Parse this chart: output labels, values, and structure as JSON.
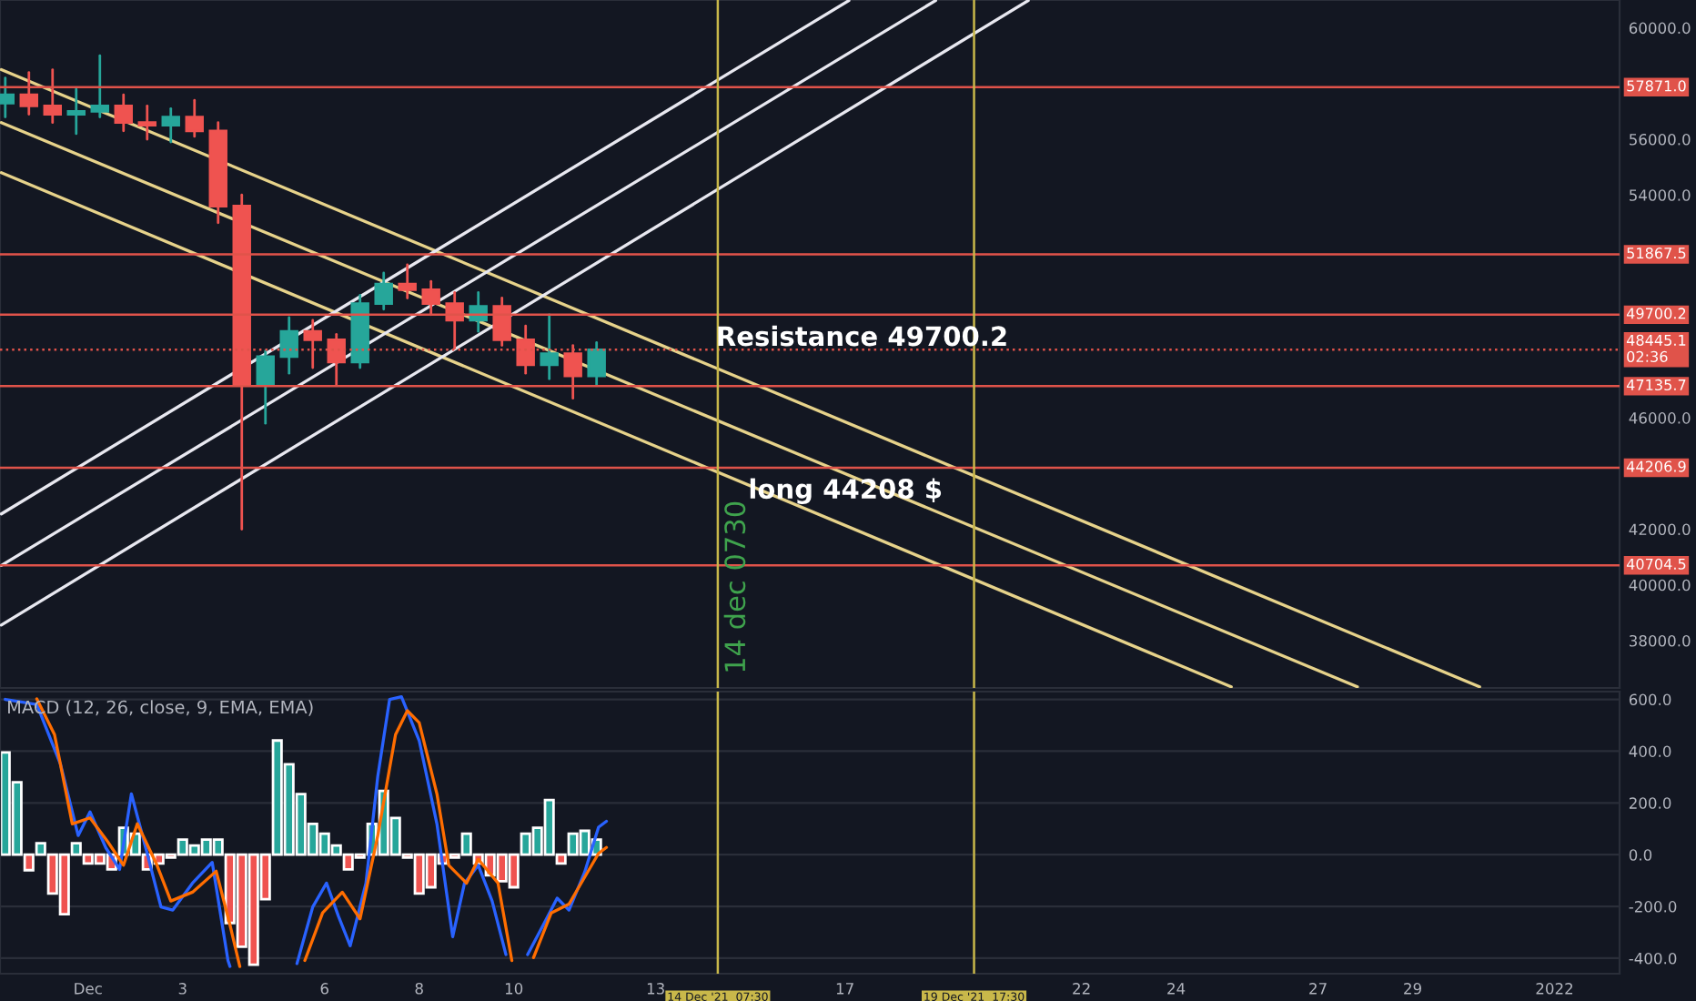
{
  "chart_data": [
    {
      "type": "candlestick",
      "x": [
        "2021-11-29T06:00",
        "2021-11-29T18:00",
        "2021-11-30T06:00",
        "2021-11-30T18:00",
        "2021-12-01T06:00",
        "2021-12-01T18:00",
        "2021-12-02T06:00",
        "2021-12-02T18:00",
        "2021-12-03T06:00",
        "2021-12-03T18:00",
        "2021-12-04T06:00",
        "2021-12-04T18:00",
        "2021-12-05T06:00",
        "2021-12-05T18:00",
        "2021-12-06T06:00",
        "2021-12-06T18:00",
        "2021-12-07T06:00",
        "2021-12-07T18:00",
        "2021-12-08T06:00",
        "2021-12-08T18:00",
        "2021-12-09T06:00",
        "2021-12-09T18:00",
        "2021-12-10T06:00",
        "2021-12-10T18:00",
        "2021-12-11T06:00",
        "2021-12-11T18:00"
      ],
      "ohlc": [
        [
          57300,
          58200,
          56800,
          57600
        ],
        [
          57600,
          58400,
          56900,
          57200
        ],
        [
          57200,
          58500,
          56600,
          56900
        ],
        [
          56900,
          57800,
          56200,
          57000
        ],
        [
          57000,
          59000,
          56800,
          57200
        ],
        [
          57200,
          57600,
          56300,
          56600
        ],
        [
          56600,
          57200,
          56000,
          56500
        ],
        [
          56500,
          57100,
          55900,
          56800
        ],
        [
          56800,
          57400,
          56100,
          56300
        ],
        [
          56300,
          56600,
          53000,
          53600
        ],
        [
          53600,
          54000,
          42000,
          47200
        ],
        [
          47200,
          48400,
          45800,
          48200
        ],
        [
          48200,
          49600,
          47600,
          49100
        ],
        [
          49100,
          49500,
          47800,
          48800
        ],
        [
          48800,
          49000,
          47200,
          48000
        ],
        [
          48000,
          50400,
          47800,
          50100
        ],
        [
          50100,
          51200,
          49900,
          50800
        ],
        [
          50800,
          51500,
          50300,
          50600
        ],
        [
          50600,
          50900,
          49700,
          50100
        ],
        [
          50100,
          50500,
          48500,
          49500
        ],
        [
          49500,
          50500,
          49100,
          50000
        ],
        [
          50000,
          50300,
          48600,
          48800
        ],
        [
          48800,
          49300,
          47600,
          47900
        ],
        [
          47900,
          49700,
          47400,
          48300
        ],
        [
          48300,
          48600,
          46700,
          47500
        ],
        [
          47500,
          48700,
          47200,
          48445.1
        ]
      ],
      "series": [
        {
          "type": "line",
          "color": "#e6d28a",
          "x": [
            "2021-11-29T04:00",
            "2021-12-30T10:00"
          ],
          "values": [
            58500,
            36340
          ]
        },
        {
          "type": "line",
          "color": "#e6d28a",
          "x": [
            "2021-11-29T04:00",
            "2021-12-27T20:00"
          ],
          "values": [
            56600,
            36340
          ]
        },
        {
          "type": "line",
          "color": "#e6d28a",
          "x": [
            "2021-11-29T04:00",
            "2021-12-25T04:00"
          ],
          "values": [
            54800,
            36340
          ]
        },
        {
          "type": "line",
          "color": "#e8e8f0",
          "x": [
            "2021-11-29T04:00",
            "2021-12-17T02:00"
          ],
          "values": [
            42550,
            60980
          ]
        },
        {
          "type": "line",
          "color": "#e8e8f0",
          "x": [
            "2021-11-29T04:00",
            "2021-12-18T22:00"
          ],
          "values": [
            40700,
            60980
          ]
        },
        {
          "type": "line",
          "color": "#e8e8f0",
          "x": [
            "2021-11-29T04:00",
            "2021-12-20T21:00"
          ],
          "values": [
            38560,
            60980
          ]
        }
      ],
      "xlim": [
        "2021-11-29T03:20",
        "2022-01-02T09:00"
      ],
      "ylim": [
        36300,
        61000
      ],
      "yticks": [
        {
          "value": 38000,
          "label": "38000.0"
        },
        {
          "value": 40000,
          "label": "40000.0"
        },
        {
          "value": 42000,
          "label": "42000.0"
        },
        {
          "value": 46000,
          "label": "46000.0"
        },
        {
          "value": 54000,
          "label": "54000.0"
        },
        {
          "value": 56000,
          "label": "56000.0"
        },
        {
          "value": 60000,
          "label": "60000.0"
        }
      ],
      "tick_labels": "y",
      "ref_lines": [
        {
          "axis": "y",
          "value": 57871.0,
          "label": "57871.0",
          "color": "#e0534a"
        },
        {
          "axis": "y",
          "value": 51867.5,
          "label": "51867.5",
          "color": "#e0534a"
        },
        {
          "axis": "y",
          "value": 49700.2,
          "label": "49700.2",
          "color": "#e0534a"
        },
        {
          "axis": "y",
          "value": 48445.1,
          "label": "48445.1\n02:36",
          "color": "#e0534a",
          "line_style": "dotted"
        },
        {
          "axis": "y",
          "value": 47135.7,
          "label": "47135.7",
          "color": "#e0534a"
        },
        {
          "axis": "y",
          "value": 44206.9,
          "label": "44206.9",
          "color": "#e0534a"
        },
        {
          "axis": "y",
          "value": 40704.5,
          "label": "40704.5",
          "color": "#e0534a"
        },
        {
          "axis": "x",
          "value": "2021-12-14T07:30",
          "label": null,
          "color": "#c9b84a"
        },
        {
          "axis": "x",
          "value": "2021-12-19T17:30",
          "label": null,
          "color": "#c9b84a"
        }
      ],
      "annotations": [
        "Resistance 49700.2",
        "long 44208 $",
        "14 dec 0730"
      ]
    },
    {
      "type": "bar",
      "title": "MACD (12, 26, close, 9, EMA, EMA)",
      "series": [
        {
          "type": "bar",
          "x": [
            "2021-11-29T06:00",
            "2021-11-29T12:00",
            "2021-11-29T18:00",
            "2021-11-30T00:00",
            "2021-11-30T06:00",
            "2021-11-30T12:00",
            "2021-11-30T18:00",
            "2021-12-01T00:00",
            "2021-12-01T06:00",
            "2021-12-01T12:00",
            "2021-12-01T18:00",
            "2021-12-02T00:00",
            "2021-12-02T06:00",
            "2021-12-02T12:00",
            "2021-12-02T18:00",
            "2021-12-03T00:00",
            "2021-12-03T06:00",
            "2021-12-03T12:00",
            "2021-12-03T18:00",
            "2021-12-04T00:00",
            "2021-12-04T06:00",
            "2021-12-04T12:00",
            "2021-12-04T18:00",
            "2021-12-05T00:00",
            "2021-12-05T06:00",
            "2021-12-05T12:00",
            "2021-12-05T18:00",
            "2021-12-06T00:00",
            "2021-12-06T06:00",
            "2021-12-06T12:00",
            "2021-12-06T18:00",
            "2021-12-07T00:00",
            "2021-12-07T06:00",
            "2021-12-07T12:00",
            "2021-12-07T18:00",
            "2021-12-08T00:00",
            "2021-12-08T06:00",
            "2021-12-08T12:00",
            "2021-12-08T18:00",
            "2021-12-09T00:00",
            "2021-12-09T06:00",
            "2021-12-09T12:00",
            "2021-12-09T18:00",
            "2021-12-10T00:00",
            "2021-12-10T06:00",
            "2021-12-10T12:00",
            "2021-12-10T18:00",
            "2021-12-11T00:00",
            "2021-12-11T06:00",
            "2021-12-11T12:00",
            "2021-12-11T18:00"
          ],
          "values": [
            395,
            280,
            -60,
            44,
            -150,
            -230,
            44,
            -34,
            -34,
            -57,
            104,
            81,
            -57,
            -34,
            -11,
            58,
            35,
            58,
            58,
            -264,
            -356,
            -425,
            -172,
            441,
            349,
            234,
            119,
            81,
            35,
            -57,
            -11,
            119,
            246,
            142,
            -11,
            -150,
            -126,
            -34,
            -11,
            81,
            -34,
            -80,
            -103,
            -126,
            81,
            104,
            211,
            -34,
            81,
            92,
            58
          ],
          "colors": [
            "#26a69a",
            "#26a69a",
            "#ef5350",
            "#26a69a",
            "#ef5350",
            "#ef5350",
            "#26a69a",
            "#ef5350",
            "#ef5350",
            "#ef5350",
            "#26a69a",
            "#26a69a",
            "#ef5350",
            "#ef5350",
            "#ef5350",
            "#26a69a",
            "#26a69a",
            "#26a69a",
            "#26a69a",
            "#ef5350",
            "#ef5350",
            "#ef5350",
            "#ef5350",
            "#26a69a",
            "#26a69a",
            "#26a69a",
            "#26a69a",
            "#26a69a",
            "#26a69a",
            "#ef5350",
            "#ef5350",
            "#26a69a",
            "#26a69a",
            "#26a69a",
            "#ef5350",
            "#ef5350",
            "#ef5350",
            "#ef5350",
            "#ef5350",
            "#26a69a",
            "#ef5350",
            "#ef5350",
            "#ef5350",
            "#ef5350",
            "#26a69a",
            "#26a69a",
            "#26a69a",
            "#ef5350",
            "#26a69a",
            "#26a69a",
            "#26a69a"
          ]
        },
        {
          "type": "line",
          "color": "#2962ff",
          "x": [
            "2021-11-29T06:00",
            "2021-11-29T22:00",
            "2021-11-30T10:00",
            "2021-11-30T19:00",
            "2021-12-01T01:00",
            "2021-12-01T09:00",
            "2021-12-01T16:00",
            "2021-12-01T22:00",
            "2021-12-02T06:00",
            "2021-12-02T13:00",
            "2021-12-02T19:00",
            "2021-12-03T05:00",
            "2021-12-03T15:00",
            "2021-12-03T23:00",
            "2021-12-04T00:00",
            "2021-12-04T12:00",
            "2021-12-05T10:00",
            "2021-12-05T18:00",
            "2021-12-06T01:00",
            "2021-12-06T07:00",
            "2021-12-06T13:00",
            "2021-12-06T21:00",
            "2021-12-07T03:00",
            "2021-12-07T09:00",
            "2021-12-07T15:00",
            "2021-12-08T00:00",
            "2021-12-08T09:00",
            "2021-12-08T17:00",
            "2021-12-08T23:00",
            "2021-12-09T06:00",
            "2021-12-09T13:00",
            "2021-12-09T20:00",
            "2021-12-10T03:00",
            "2021-12-10T07:00",
            "2021-12-10T15:00",
            "2021-12-10T22:00",
            "2021-12-11T04:00",
            "2021-12-11T12:00",
            "2021-12-11T19:00",
            "2021-12-11T23:00"
          ],
          "values": [
            600,
            580,
            350,
            74,
            165,
            27,
            -57,
            235,
            5,
            -202,
            -214,
            -110,
            -30,
            -409,
            -432,
            null,
            -421,
            -202,
            -110,
            -237,
            -352,
            -110,
            303,
            600,
            610,
            441,
            119,
            -317,
            -110,
            -41,
            -179,
            -386,
            null,
            -386,
            -271,
            -168,
            -214,
            -67,
            106,
            129
          ]
        },
        {
          "type": "line",
          "color": "#ff6d00",
          "x": [
            "2021-11-29T22:00",
            "2021-11-30T07:00",
            "2021-11-30T16:00",
            "2021-12-01T01:00",
            "2021-12-01T10:00",
            "2021-12-01T18:00",
            "2021-12-02T01:00",
            "2021-12-02T11:00",
            "2021-12-02T18:00",
            "2021-12-03T05:00",
            "2021-12-03T17:00",
            "2021-12-04T00:00",
            "2021-12-04T05:00",
            "2021-12-04T18:00",
            "2021-12-05T14:00",
            "2021-12-05T23:00",
            "2021-12-06T09:00",
            "2021-12-06T18:00",
            "2021-12-07T03:00",
            "2021-12-07T12:00",
            "2021-12-07T18:00",
            "2021-12-08T00:00",
            "2021-12-08T09:00",
            "2021-12-08T15:00",
            "2021-12-09T00:00",
            "2021-12-09T06:00",
            "2021-12-09T16:00",
            "2021-12-09T23:00",
            "2021-12-10T05:00",
            "2021-12-10T10:00",
            "2021-12-10T19:00",
            "2021-12-11T04:00",
            "2021-12-11T19:00",
            "2021-12-11T23:00"
          ],
          "values": [
            602,
            464,
            119,
            142,
            50,
            -41,
            119,
            -41,
            -179,
            -145,
            -64,
            -271,
            -432,
            null,
            -409,
            -225,
            -145,
            -248,
            74,
            464,
            556,
            510,
            235,
            -41,
            -110,
            -18,
            -110,
            -409,
            null,
            -398,
            -225,
            -191,
            5,
            28
          ]
        }
      ],
      "xlim": [
        "2021-11-29T03:20",
        "2022-01-02T09:00"
      ],
      "xticks": [
        {
          "value": "2021-12-01",
          "label": "Dec"
        },
        {
          "value": "2021-12-03",
          "label": "3"
        },
        {
          "value": "2021-12-06",
          "label": "6"
        },
        {
          "value": "2021-12-08",
          "label": "8"
        },
        {
          "value": "2021-12-10",
          "label": "10"
        },
        {
          "value": "2021-12-13",
          "label": "13"
        },
        {
          "value": "2021-12-17",
          "label": "17"
        },
        {
          "value": "2021-12-22",
          "label": "22"
        },
        {
          "value": "2021-12-24",
          "label": "24"
        },
        {
          "value": "2021-12-27",
          "label": "27"
        },
        {
          "value": "2021-12-29",
          "label": "29"
        },
        {
          "value": "2022-01-01",
          "label": "2022"
        }
      ],
      "ylim": [
        -460,
        630
      ],
      "yticks": [
        {
          "value": -400,
          "label": "-400.0"
        },
        {
          "value": -200,
          "label": "-200.0"
        },
        {
          "value": 0,
          "label": "0.0"
        },
        {
          "value": 200,
          "label": "200.0"
        },
        {
          "value": 400,
          "label": "400.0"
        },
        {
          "value": 600,
          "label": "600.0"
        }
      ],
      "grid": "y",
      "ref_lines": [
        {
          "axis": "x",
          "value": "2021-12-14T07:30",
          "label": "14 Dec '21  07:30",
          "color": "#c9b84a"
        },
        {
          "axis": "x",
          "value": "2021-12-19T17:30",
          "label": "19 Dec '21  17:30",
          "color": "#c9b84a"
        }
      ]
    }
  ]
}
